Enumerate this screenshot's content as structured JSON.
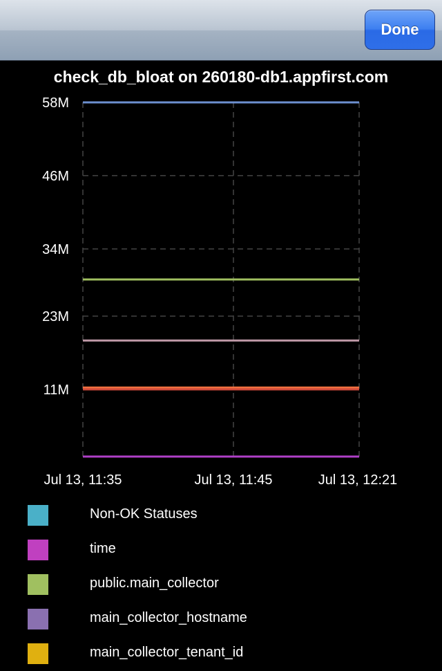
{
  "navbar": {
    "done_label": "Done"
  },
  "chart_data": {
    "type": "line",
    "title": "check_db_bloat on 260180-db1.appfirst.com",
    "xlabel": "",
    "ylabel": "",
    "x_ticks": [
      "Jul 13, 11:35",
      "Jul 13, 11:45",
      "Jul 13, 12:21"
    ],
    "y_ticks": [
      "58M",
      "46M",
      "34M",
      "23M",
      "11M"
    ],
    "y_tick_values": [
      58,
      46,
      34,
      23,
      11
    ],
    "ylim": [
      0,
      58
    ],
    "grid": true,
    "legend_position": "bottom",
    "series": [
      {
        "name": "Non-OK Statuses",
        "color": "#4ab0c8",
        "value": null
      },
      {
        "name": "time",
        "color": "#c040c0",
        "value": 0
      },
      {
        "name": "public.main_collector",
        "color": "#a0c060",
        "value": 29
      },
      {
        "name": "main_collector_hostname",
        "color": "#8a70b0",
        "value": null
      },
      {
        "name": "main_collector_tenant_id",
        "color": "#e0b010",
        "value": null
      }
    ],
    "lines": [
      {
        "value": 58,
        "color": "#6d8fd0"
      },
      {
        "value": 29,
        "color": "#a0c060"
      },
      {
        "value": 19,
        "color": "#c09aa8"
      },
      {
        "value": 11.3,
        "color": "#f07040"
      },
      {
        "value": 11.0,
        "color": "#d04a3a"
      },
      {
        "value": 0,
        "color": "#b040c8"
      }
    ]
  }
}
